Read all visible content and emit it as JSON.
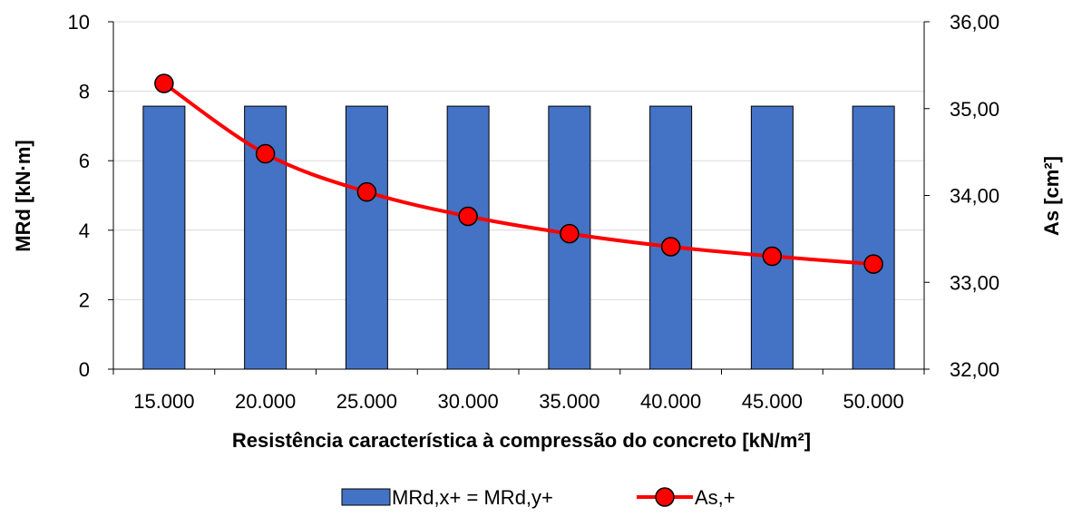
{
  "chart_data": {
    "type": "bar",
    "categories": [
      "15.000",
      "20.000",
      "25.000",
      "30.000",
      "35.000",
      "40.000",
      "45.000",
      "50.000"
    ],
    "series": [
      {
        "name": "MRd,x+ = MRd,y+",
        "type": "bar",
        "axis": "left",
        "color": "#4472C4",
        "values": [
          7.57,
          7.57,
          7.57,
          7.57,
          7.57,
          7.57,
          7.57,
          7.57
        ]
      },
      {
        "name": "As,+",
        "type": "line",
        "axis": "right",
        "color": "#FF0000",
        "values": [
          35.29,
          34.48,
          34.04,
          33.76,
          33.56,
          33.41,
          33.3,
          33.21
        ]
      }
    ],
    "xlabel": "Resistência característica à compressão do concreto [kN/m²]",
    "ylabel": "MRd [kN·m]",
    "y2label": "As [cm²]",
    "ylim": [
      0,
      10
    ],
    "y2lim": [
      32,
      36
    ],
    "yticks": [
      "0",
      "2",
      "4",
      "6",
      "8",
      "10"
    ],
    "y2ticks": [
      "32,00",
      "33,00",
      "34,00",
      "35,00",
      "36,00"
    ],
    "grid": true,
    "legend": "bottom"
  }
}
